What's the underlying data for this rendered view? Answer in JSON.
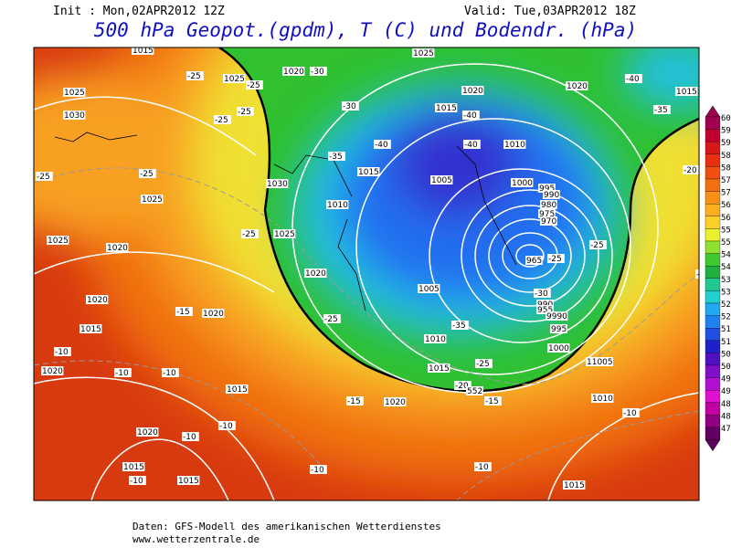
{
  "header": {
    "init": "Init : Mon,02APR2012 12Z",
    "valid": "Valid: Tue,03APR2012 18Z",
    "title": "500 hPa Geopot.(gpdm), T (C) und Bodendr. (hPa)"
  },
  "map": {
    "labels": [
      "1015",
      "1020",
      "-30",
      "1025",
      "1025",
      "1030",
      "-25",
      "1025",
      "-25",
      "-25",
      "-25",
      "1020",
      "1020",
      "-40",
      "1015",
      "-30",
      "1015",
      "-40",
      "-35",
      "-40",
      "-40",
      "1010",
      "-35",
      "1015",
      "1005",
      "-25",
      "1030",
      "1000",
      "995",
      "990",
      "980",
      "975",
      "970",
      "-25",
      "1025",
      "1010",
      "-20",
      "-25",
      "1025",
      "-25",
      "965",
      "-25",
      "1025",
      "1020",
      "1020",
      "-15",
      "1020",
      "1005",
      "-30",
      "990",
      "-15",
      "1020",
      "955",
      "9990",
      "-25",
      "1015",
      "-35",
      "995",
      "1010",
      "-10",
      "1000",
      "1020",
      "-10",
      "-10",
      "1015",
      "-25",
      "11005",
      "-20",
      "552",
      "1015",
      "-15",
      "-15",
      "1020",
      "1010",
      "-10",
      "-10",
      "1020",
      "-10",
      "1015",
      "-10",
      "-10",
      "-10",
      "1015",
      "1015"
    ]
  },
  "legend": {
    "labels": [
      "60",
      "59",
      "59",
      "58",
      "58",
      "57",
      "57",
      "56",
      "56",
      "55",
      "55",
      "54",
      "54",
      "53",
      "53",
      "52",
      "52",
      "51",
      "51",
      "50",
      "50",
      "49",
      "49",
      "48",
      "48",
      "47"
    ]
  },
  "footer": {
    "source": "Daten: GFS-Modell des amerikanischen Wetterdienstes",
    "site": "www.wetterzentrale.de"
  }
}
